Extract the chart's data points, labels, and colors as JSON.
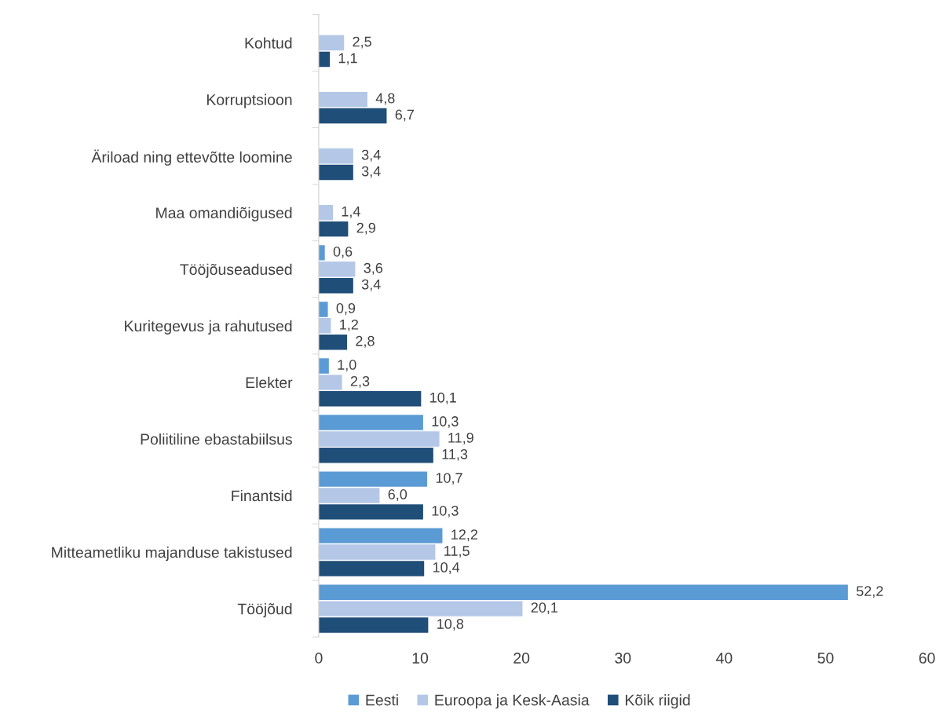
{
  "chart_data": {
    "type": "bar",
    "orientation": "horizontal",
    "categories": [
      "Kohtud",
      "Korruptsioon",
      "Äriload ning ettevõtte loomine",
      "Maa omandiõigused",
      "Tööjõuseadused",
      "Kuritegevus ja rahutused",
      "Elekter",
      "Poliitiline ebastabiilsus",
      "Finantsid",
      "Mitteametliku majanduse takistused",
      "Tööjõud"
    ],
    "series": [
      {
        "name": "Eesti",
        "color": "#5b9bd5",
        "values": [
          null,
          null,
          null,
          null,
          0.6,
          0.9,
          1.0,
          10.3,
          10.7,
          12.2,
          52.2
        ],
        "value_labels": [
          null,
          null,
          null,
          null,
          "0,6",
          "0,9",
          "1,0",
          "10,3",
          "10,7",
          "12,2",
          "52,2"
        ]
      },
      {
        "name": "Euroopa ja Kesk-Aasia",
        "color": "#b4c7e7",
        "values": [
          2.5,
          4.8,
          3.4,
          1.4,
          3.6,
          1.2,
          2.3,
          11.9,
          6.0,
          11.5,
          20.1
        ],
        "value_labels": [
          "2,5",
          "4,8",
          "3,4",
          "1,4",
          "3,6",
          "1,2",
          "2,3",
          "11,9",
          "6,0",
          "11,5",
          "20,1"
        ]
      },
      {
        "name": "Kõik riigid",
        "color": "#1f4e79",
        "values": [
          1.1,
          6.7,
          3.4,
          2.9,
          3.4,
          2.8,
          10.1,
          11.3,
          10.3,
          10.4,
          10.8
        ],
        "value_labels": [
          "1,1",
          "6,7",
          "3,4",
          "2,9",
          "3,4",
          "2,8",
          "10,1",
          "11,3",
          "10,3",
          "10,4",
          "10,8"
        ]
      }
    ],
    "xlim": [
      0,
      60
    ],
    "xticks": [
      0,
      10,
      20,
      30,
      40,
      50,
      60
    ],
    "grid": false,
    "legend": "bottom"
  }
}
